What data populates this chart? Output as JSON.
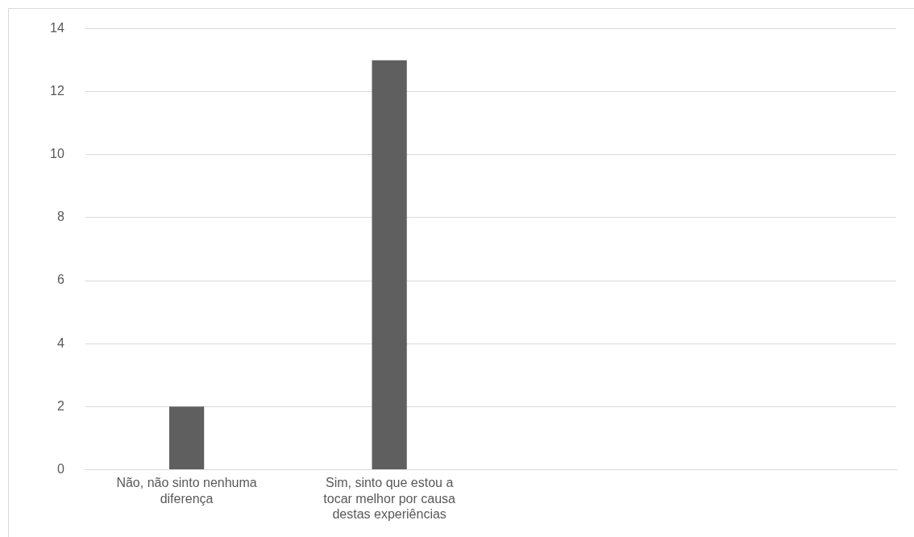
{
  "chart_data": {
    "type": "bar",
    "categories": [
      "Não, não sinto nenhuma diferença",
      "Sim, sinto que estou a tocar melhor por causa destas experiências",
      null,
      null
    ],
    "values": [
      2,
      13,
      null,
      null
    ],
    "color": "#5f5f5f",
    "ylim": [
      0,
      14
    ],
    "yticks": [
      0,
      2,
      4,
      6,
      8,
      10,
      12,
      14
    ],
    "grid": "y",
    "legend": false
  }
}
